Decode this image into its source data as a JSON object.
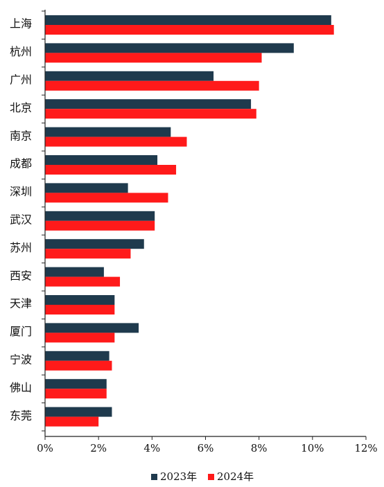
{
  "chart_data": {
    "type": "bar",
    "orientation": "horizontal",
    "categories": [
      "上海",
      "杭州",
      "广州",
      "北京",
      "南京",
      "成都",
      "深圳",
      "武汉",
      "苏州",
      "西安",
      "天津",
      "厦门",
      "宁波",
      "佛山",
      "东莞"
    ],
    "series": [
      {
        "name": "2023年",
        "color": "#1f3a4d",
        "values": [
          10.7,
          9.3,
          6.3,
          7.7,
          4.7,
          4.2,
          3.1,
          4.1,
          3.7,
          2.2,
          2.6,
          3.5,
          2.4,
          2.3,
          2.5
        ]
      },
      {
        "name": "2024年",
        "color": "#ff1a1a",
        "values": [
          10.8,
          8.1,
          8.0,
          7.9,
          5.3,
          4.9,
          4.6,
          4.1,
          3.2,
          2.8,
          2.6,
          2.6,
          2.5,
          2.3,
          2.0
        ]
      }
    ],
    "xlim": [
      0,
      12
    ],
    "x_ticks": [
      "0%",
      "2%",
      "4%",
      "6%",
      "8%",
      "10%",
      "12%"
    ],
    "grid": false,
    "legend_position": "bottom-center"
  }
}
